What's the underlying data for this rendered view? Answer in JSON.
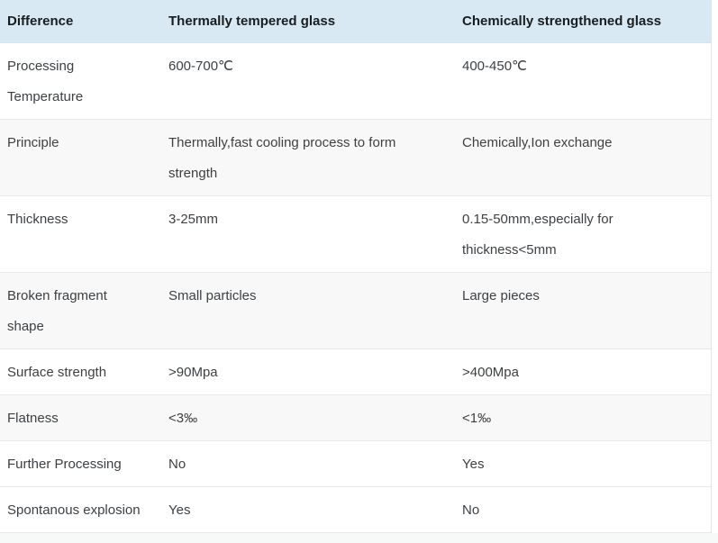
{
  "table": {
    "columns": [
      {
        "label": "Difference"
      },
      {
        "label": "Thermally tempered glass"
      },
      {
        "label": "Chemically strengthened glass"
      }
    ],
    "rows": [
      {
        "label": "Processing\nTemperature",
        "thermal": "600-700℃",
        "chemical": "400-450℃"
      },
      {
        "label": "Principle",
        "thermal": "Thermally,fast cooling process to form\nstrength",
        "chemical": "Chemically,Ion exchange"
      },
      {
        "label": "Thickness",
        "thermal": "3-25mm",
        "chemical": "0.15-50mm,especially for\nthickness<5mm"
      },
      {
        "label": "Broken fragment\nshape",
        "thermal": "Small particles",
        "chemical": "Large pieces"
      },
      {
        "label": "Surface strength",
        "thermal": ">90Mpa",
        "chemical": ">400Mpa"
      },
      {
        "label": "Flatness",
        "thermal": "<3‰",
        "chemical": "<1‰"
      },
      {
        "label": "Further Processing",
        "thermal": "No",
        "chemical": "Yes"
      },
      {
        "label": "Spontanous explosion",
        "thermal": "Yes",
        "chemical": "No"
      }
    ],
    "colors": {
      "header_bg": "#d8e9f3",
      "header_text": "#1a1d20",
      "body_text": "#3d4144",
      "stripe_bg": "#f8f8f8",
      "divider": "#e8e9ea",
      "footer_strip_bg": "#f7f8f8"
    }
  }
}
